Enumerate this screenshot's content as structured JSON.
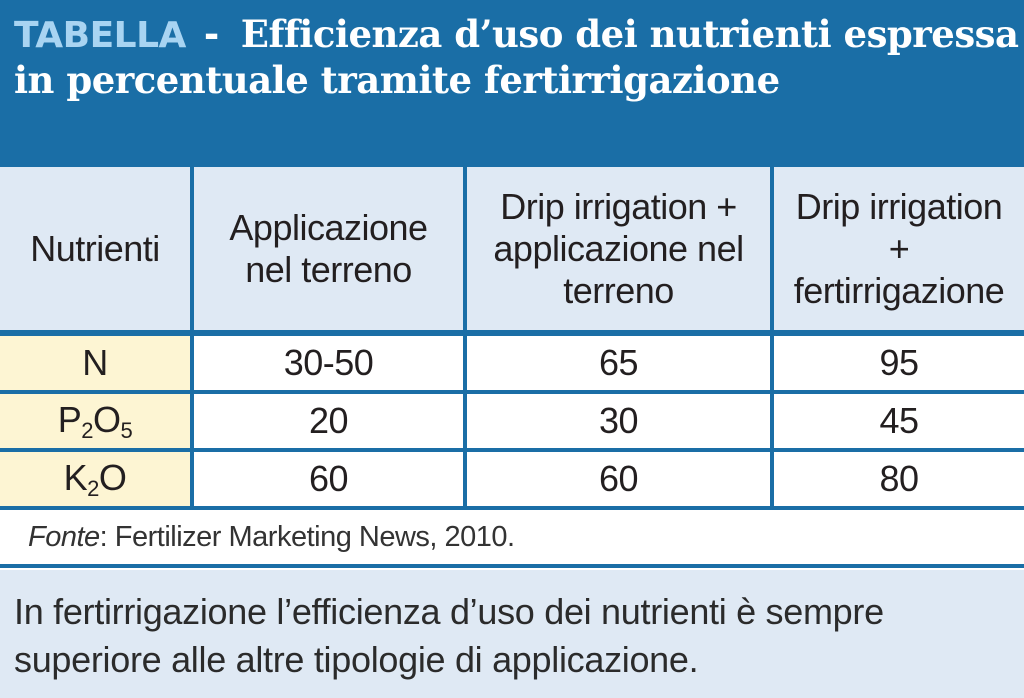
{
  "header": {
    "tag": "TABELLA",
    "separator": "-",
    "title": "Efficienza d’uso dei nutrienti espressa in percentuale tramite fertirrigazione"
  },
  "table": {
    "columns": [
      "Nutrienti",
      "Applicazione nel terreno",
      "Drip irrigation + applicazione nel terreno",
      "Drip irrigation + fertirrigazione"
    ],
    "rows": [
      {
        "nutrient": "N",
        "nutrient_base": "N",
        "values": [
          "30-50",
          "65",
          "95"
        ]
      },
      {
        "nutrient": "P2O5",
        "nutrient_parts": [
          "P",
          "2",
          "O",
          "5"
        ],
        "values": [
          "20",
          "30",
          "45"
        ]
      },
      {
        "nutrient": "K2O",
        "nutrient_parts": [
          "K",
          "2",
          "O"
        ],
        "values": [
          "60",
          "60",
          "80"
        ]
      }
    ]
  },
  "source": {
    "label": "Fonte",
    "text": ": Fertilizer Marketing News, 2010."
  },
  "note": "In fertirrigazione l’efficienza d’uso dei nutrienti è sempre superiore alle altre tipologie di applicazione.",
  "colors": {
    "header_blue": "#1a6ea6",
    "header_cell": "#dfe9f4",
    "nutrient_cell": "#fdf5d3"
  }
}
